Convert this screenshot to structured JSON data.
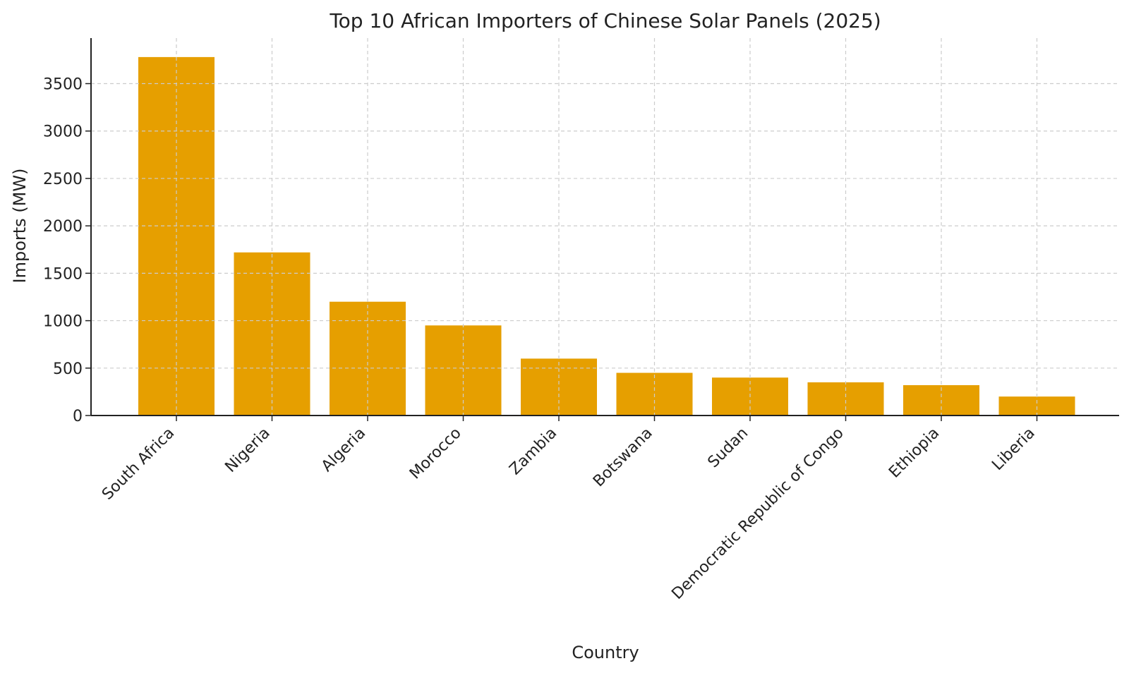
{
  "chart_data": {
    "type": "bar",
    "title": "Top 10 African Importers of Chinese Solar Panels (2025)",
    "xlabel": "Country",
    "ylabel": "Imports (MW)",
    "categories": [
      "South Africa",
      "Nigeria",
      "Algeria",
      "Morocco",
      "Zambia",
      "Botswana",
      "Sudan",
      "Democratic Republic of Congo",
      "Ethiopia",
      "Liberia"
    ],
    "values": [
      3780,
      1720,
      1200,
      950,
      600,
      450,
      400,
      350,
      320,
      200
    ],
    "ylim": [
      0,
      3980
    ],
    "yticks": [
      0,
      500,
      1000,
      1500,
      2000,
      2500,
      3000,
      3500
    ],
    "grid": true,
    "bar_color": "#E69F00",
    "grid_color": "#cccccc"
  }
}
